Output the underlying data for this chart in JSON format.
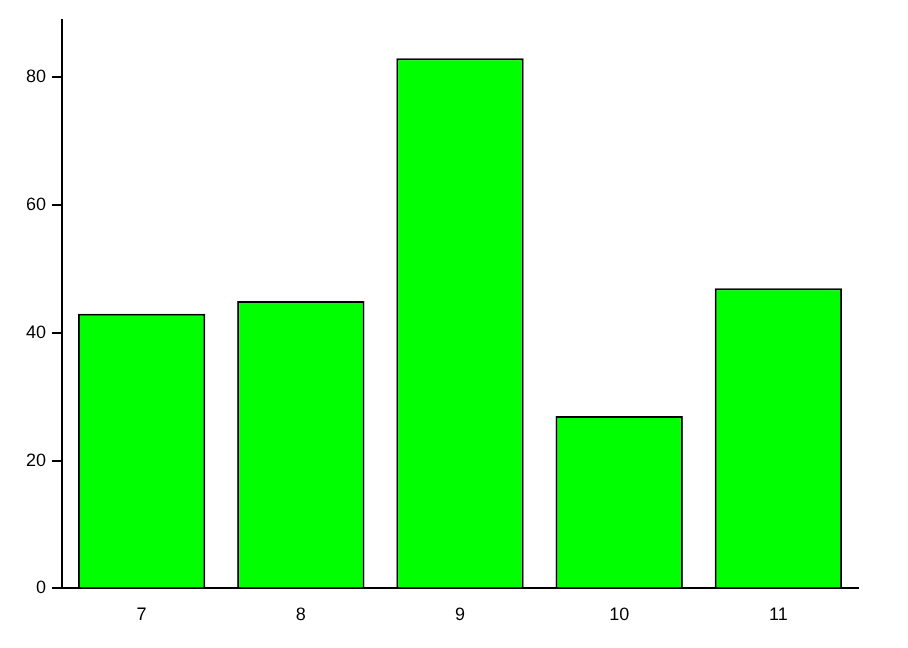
{
  "chart_data": {
    "type": "bar",
    "categories": [
      "7",
      "8",
      "9",
      "10",
      "11"
    ],
    "values": [
      43,
      45,
      83,
      27,
      47
    ],
    "color": "#00ff00",
    "ylim": [
      0,
      89
    ],
    "yticks": [
      0,
      20,
      40,
      60,
      80
    ],
    "grid": false,
    "legend": false
  }
}
